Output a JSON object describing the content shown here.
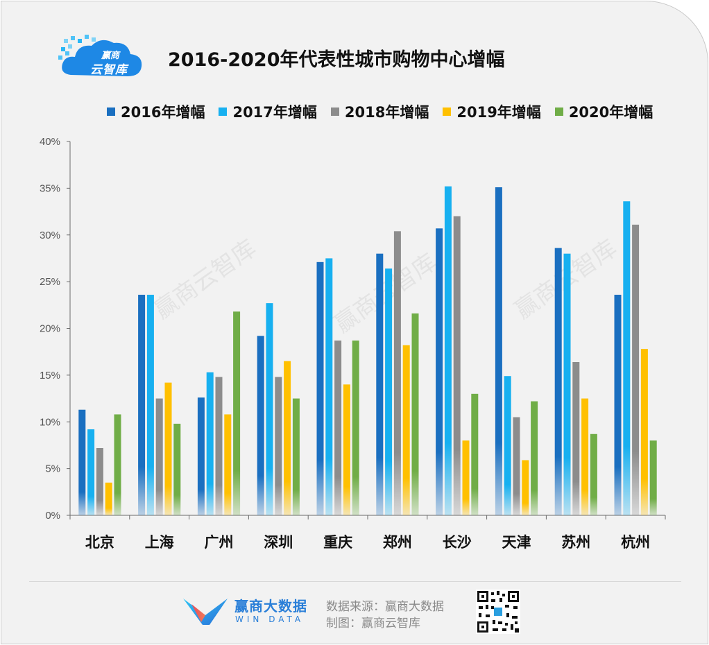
{
  "logo": {
    "line1": "赢商",
    "line2": "云智库",
    "color": "#1e88e5"
  },
  "title": "2016-2020年代表性城市购物中心增幅",
  "chart_data": {
    "type": "bar",
    "title": "2016-2020年代表性城市购物中心增幅",
    "categories": [
      "北京",
      "上海",
      "广州",
      "深圳",
      "重庆",
      "郑州",
      "长沙",
      "天津",
      "苏州",
      "杭州"
    ],
    "series": [
      {
        "name": "2016年增幅",
        "color": "#1a6fc0",
        "values": [
          11.3,
          23.6,
          12.6,
          19.2,
          27.1,
          28.0,
          30.7,
          35.1,
          28.6,
          23.6
        ]
      },
      {
        "name": "2017年增幅",
        "color": "#17b0f0",
        "values": [
          9.2,
          23.6,
          15.3,
          22.7,
          27.5,
          26.4,
          35.2,
          14.9,
          28.0,
          33.6
        ]
      },
      {
        "name": "2018年增幅",
        "color": "#8c8c8c",
        "values": [
          7.2,
          12.5,
          14.8,
          14.8,
          18.7,
          30.4,
          32.0,
          10.5,
          16.4,
          31.1
        ]
      },
      {
        "name": "2019年增幅",
        "color": "#ffc000",
        "values": [
          3.5,
          14.2,
          10.8,
          16.5,
          14.0,
          18.2,
          8.0,
          5.9,
          12.5,
          17.8
        ]
      },
      {
        "name": "2020年增幅",
        "color": "#70ad47",
        "values": [
          10.8,
          9.8,
          21.8,
          12.5,
          18.7,
          21.6,
          13.0,
          12.2,
          8.7,
          8.0
        ]
      }
    ],
    "y_ticks": [
      "0%",
      "5%",
      "10%",
      "15%",
      "20%",
      "25%",
      "30%",
      "35%",
      "40%"
    ],
    "ylim": [
      0,
      40
    ],
    "y_unit": "%",
    "grid": false,
    "legend_position": "top"
  },
  "watermark": "赢商云智库",
  "footer": {
    "brand_name": "赢商大数据",
    "brand_sub": "WIN DATA",
    "source": "数据来源：赢商大数据",
    "made_by": "制图：赢商云智库"
  }
}
